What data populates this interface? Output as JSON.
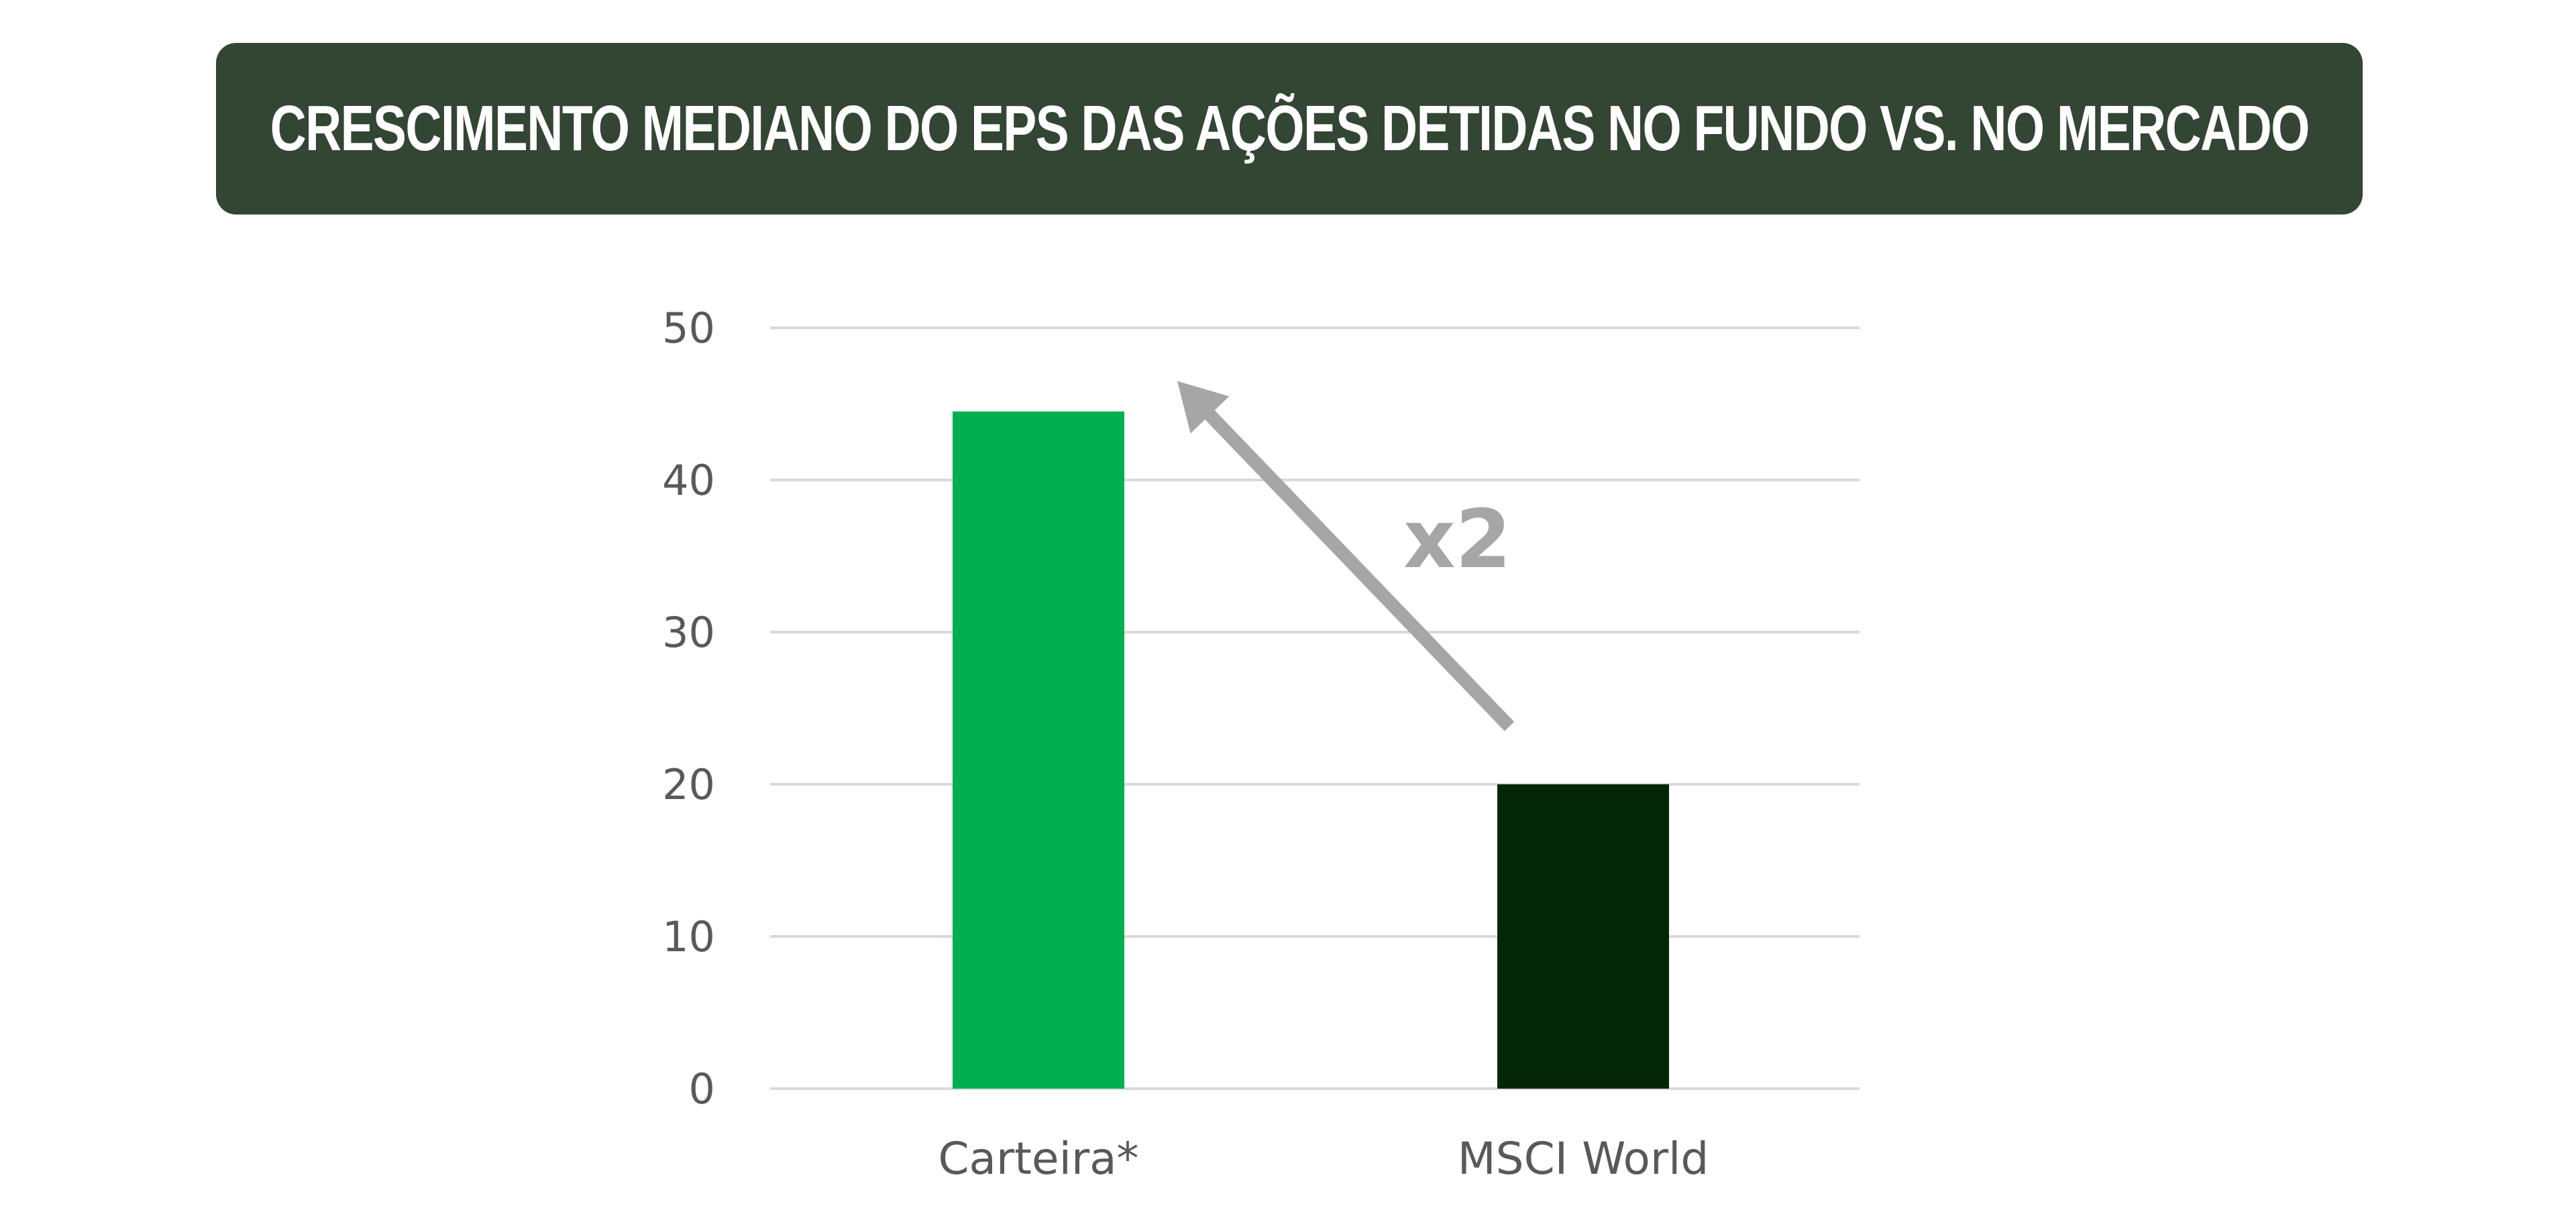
{
  "chart_data": {
    "type": "bar",
    "title": "CRESCIMENTO MEDIANO DO EPS DAS AÇÕES DETIDAS NO FUNDO VS. NO MERCADO",
    "categories": [
      "Carteira*",
      "MSCI World"
    ],
    "values": [
      44.5,
      20
    ],
    "colors": [
      "#00b050",
      "#032608"
    ],
    "ylim": [
      0,
      50
    ],
    "yticks": [
      0,
      10,
      20,
      30,
      40,
      50
    ],
    "ytick_labels": [
      "0",
      "10",
      "20",
      "30",
      "40",
      "50"
    ],
    "grid": true,
    "xlabel": "",
    "ylabel": "",
    "annotation": {
      "text": "x2",
      "arrow": "from MSCI World bar up toward Carteira* bar",
      "color": "#a6a6a6"
    }
  }
}
